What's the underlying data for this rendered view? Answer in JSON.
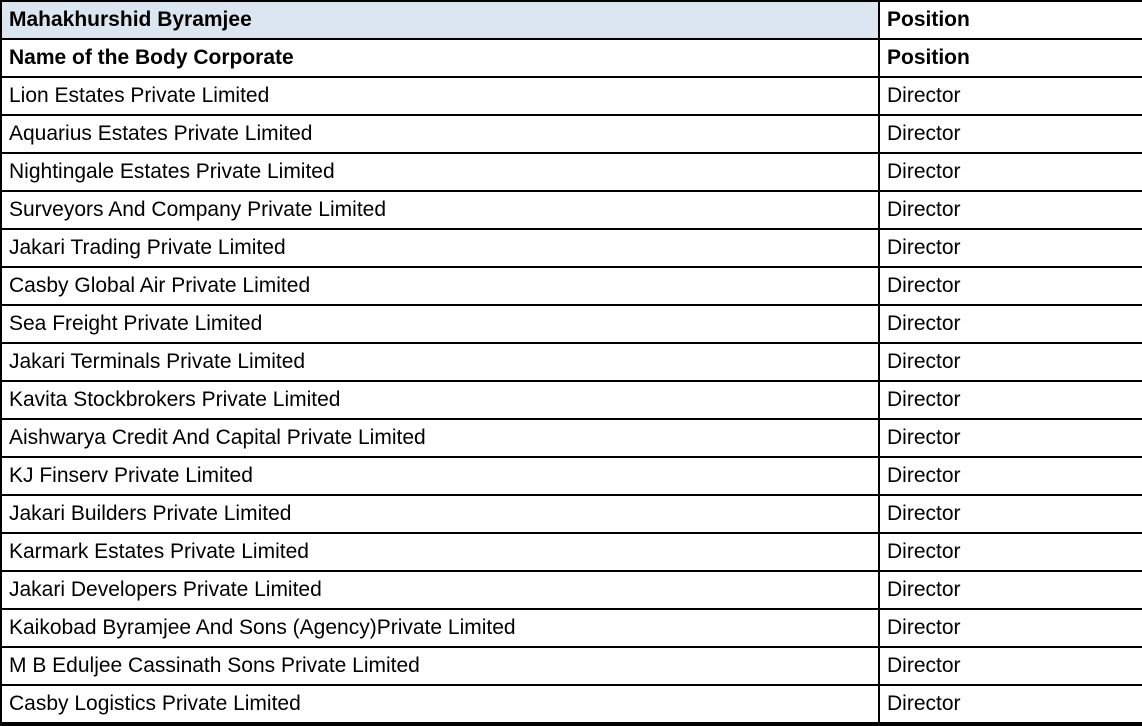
{
  "table": {
    "colors": {
      "header_bg": "#dce6f1",
      "border": "#000000",
      "text": "#000000"
    },
    "header": {
      "title": "Mahakhurshid Byramjee",
      "position_label": "Position"
    },
    "subheader": {
      "title": "Name of the Body Corporate",
      "position_label": "Position"
    },
    "rows": [
      {
        "name": "Lion Estates Private Limited",
        "position": "Director"
      },
      {
        "name": "Aquarius Estates Private Limited",
        "position": "Director"
      },
      {
        "name": "Nightingale Estates Private Limited",
        "position": "Director"
      },
      {
        "name": "Surveyors And Company Private Limited",
        "position": "Director"
      },
      {
        "name": "Jakari Trading Private Limited",
        "position": "Director"
      },
      {
        "name": "Casby Global Air Private Limited",
        "position": "Director"
      },
      {
        "name": "Sea Freight Private Limited",
        "position": "Director"
      },
      {
        "name": "Jakari Terminals Private Limited",
        "position": "Director"
      },
      {
        "name": "Kavita Stockbrokers Private Limited",
        "position": "Director"
      },
      {
        "name": "Aishwarya Credit And Capital Private Limited",
        "position": "Director"
      },
      {
        "name": "KJ Finserv Private Limited",
        "position": "Director"
      },
      {
        "name": "Jakari Builders Private Limited",
        "position": "Director"
      },
      {
        "name": "Karmark Estates Private Limited",
        "position": "Director"
      },
      {
        "name": "Jakari Developers Private Limited",
        "position": "Director"
      },
      {
        "name": "Kaikobad Byramjee And Sons (Agency)Private Limited",
        "position": "Director"
      },
      {
        "name": "M B Eduljee Cassinath Sons Private Limited",
        "position": "Director"
      },
      {
        "name": "Casby Logistics Private Limited",
        "position": "Director"
      }
    ]
  }
}
